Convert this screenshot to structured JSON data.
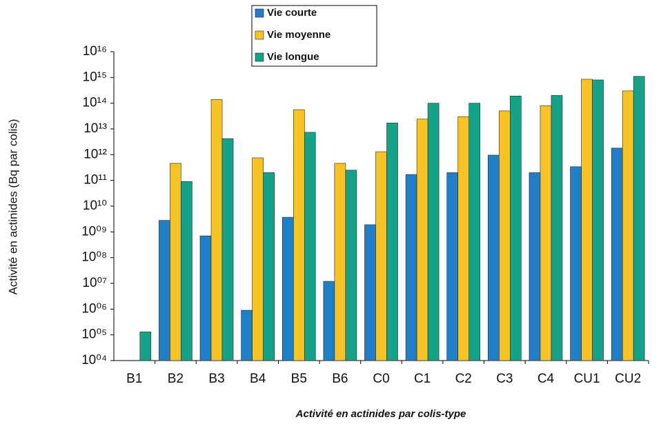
{
  "chart_data": {
    "type": "bar",
    "y_label": "Activité en actinides (Bq par colis)",
    "x_label": "Activité en actinides par colis-type",
    "categories": [
      "B1",
      "B2",
      "B3",
      "B4",
      "B5",
      "B6",
      "C0",
      "C1",
      "C2",
      "C3",
      "C4",
      "CU1",
      "CU2"
    ],
    "series": [
      {
        "name": "Vie courte",
        "color": "#1f7fc8",
        "values": [
          null,
          2800000000,
          700000000,
          900000,
          3700000000,
          12000000,
          1900000000,
          170000000000,
          200000000000,
          960000000000,
          200000000000,
          340000000000,
          1800000000000
        ]
      },
      {
        "name": "Vie moyenne",
        "color": "#f7c325",
        "values": [
          null,
          460000000000,
          140000000000000,
          750000000000,
          56000000000000,
          460000000000,
          1300000000000,
          24000000000000,
          30000000000000,
          50000000000000,
          80000000000000,
          850000000000000,
          300000000000000
        ]
      },
      {
        "name": "Vie longue",
        "color": "#14a388",
        "values": [
          130000,
          90000000000,
          4200000000000,
          200000000000,
          7400000000000,
          250000000000,
          17000000000000,
          100000000000000,
          100000000000000,
          190000000000000,
          200000000000000,
          800000000000000,
          1100000000000000
        ]
      }
    ],
    "log_scale": true,
    "ylim": [
      10000,
      10000000000000000
    ],
    "yticks": [
      {
        "value": 10000,
        "label": "10⁰⁴"
      },
      {
        "value": 100000,
        "label": "10⁰⁵"
      },
      {
        "value": 1000000,
        "label": "10⁰⁶"
      },
      {
        "value": 10000000,
        "label": "10⁰⁷"
      },
      {
        "value": 100000000,
        "label": "10⁰⁸"
      },
      {
        "value": 1000000000,
        "label": "10⁰⁹"
      },
      {
        "value": 10000000000,
        "label": "10¹⁰"
      },
      {
        "value": 100000000000,
        "label": "10¹¹"
      },
      {
        "value": 1000000000000,
        "label": "10¹²"
      },
      {
        "value": 10000000000000,
        "label": "10¹³"
      },
      {
        "value": 100000000000000,
        "label": "10¹⁴"
      },
      {
        "value": 1000000000000000,
        "label": "10¹⁵"
      },
      {
        "value": 10000000000000000,
        "label": "10¹⁶"
      }
    ],
    "grid": false,
    "legend": "top"
  }
}
